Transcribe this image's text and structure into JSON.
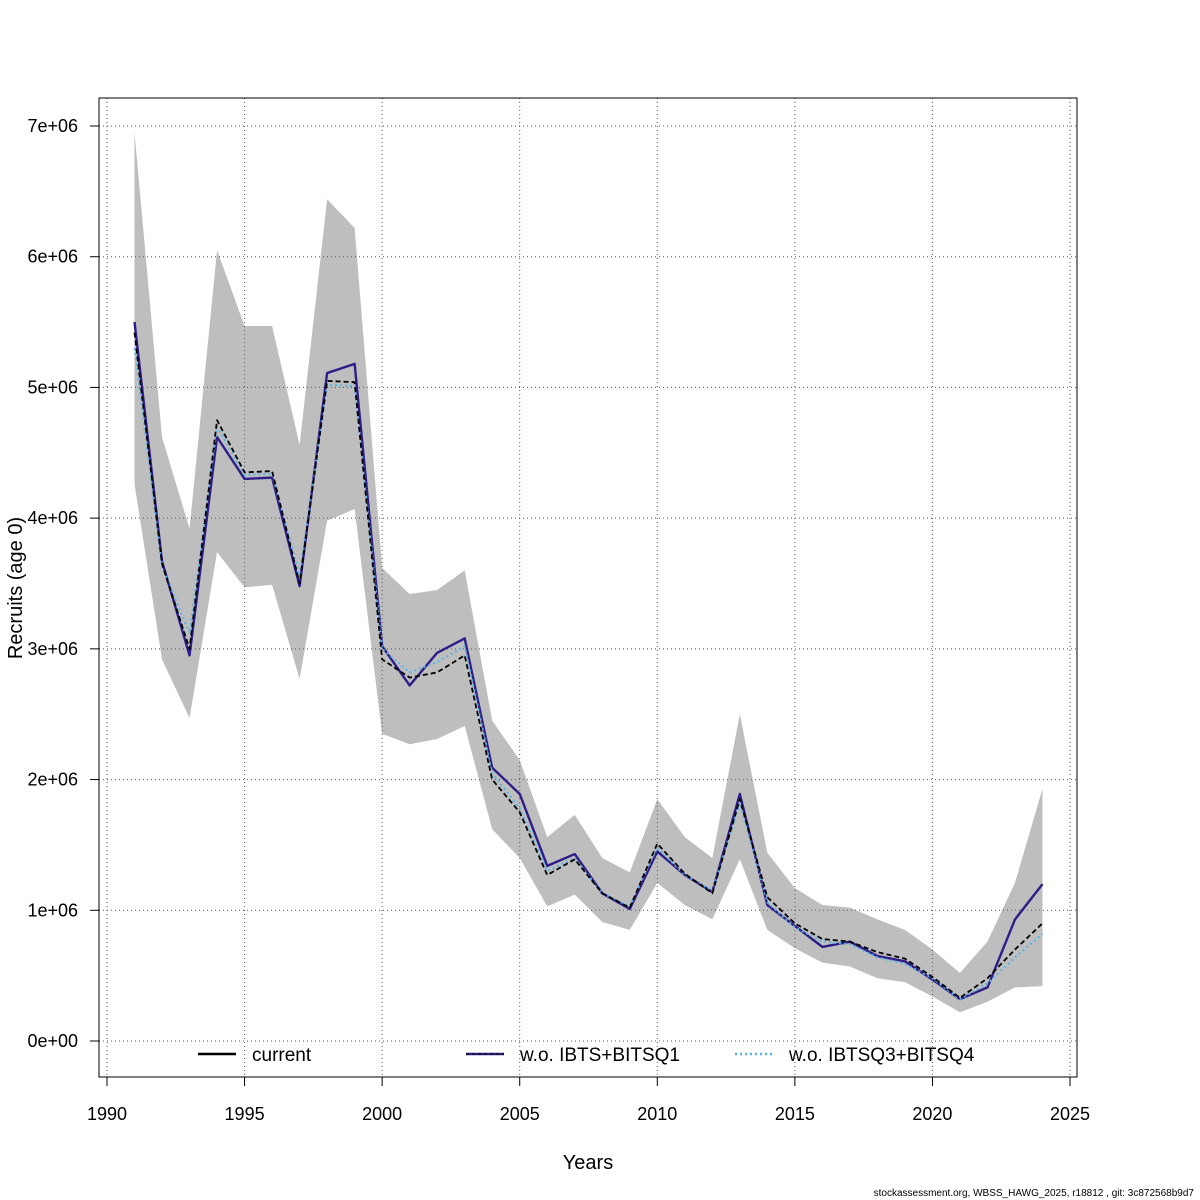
{
  "chart_data": {
    "type": "line",
    "xlabel": "Years",
    "ylabel": "Recruits (age 0)",
    "xlim": [
      1990,
      2025
    ],
    "ylim": [
      0,
      7000000
    ],
    "x_ticks": [
      1990,
      1995,
      2000,
      2005,
      2010,
      2015,
      2020,
      2025
    ],
    "y_ticks": [
      0,
      1000000,
      2000000,
      3000000,
      4000000,
      5000000,
      6000000,
      7000000
    ],
    "x_tick_labels": [
      "1990",
      "1995",
      "2000",
      "2005",
      "2010",
      "2015",
      "2020",
      "2025"
    ],
    "y_tick_labels": [
      "0e+00",
      "1e+06",
      "2e+06",
      "3e+06",
      "4e+06",
      "5e+06",
      "6e+06",
      "7e+06"
    ],
    "grid": true,
    "legend_position": "bottom",
    "x": [
      1991,
      1992,
      1993,
      1994,
      1995,
      1996,
      1997,
      1998,
      1999,
      2000,
      2001,
      2002,
      2003,
      2004,
      2005,
      2006,
      2007,
      2008,
      2009,
      2010,
      2011,
      2012,
      2013,
      2014,
      2015,
      2016,
      2017,
      2018,
      2019,
      2020,
      2021,
      2022,
      2023,
      2024
    ],
    "band": {
      "name": "confidence interval",
      "color": "#bebebe",
      "upper": [
        6950000,
        4620000,
        3920000,
        6050000,
        5470000,
        5470000,
        4560000,
        6440000,
        6220000,
        3620000,
        3420000,
        3450000,
        3600000,
        2450000,
        2150000,
        1560000,
        1730000,
        1400000,
        1290000,
        1850000,
        1560000,
        1400000,
        2500000,
        1440000,
        1170000,
        1040000,
        1020000,
        930000,
        850000,
        700000,
        520000,
        760000,
        1210000,
        1930000
      ],
      "lower": [
        4260000,
        2920000,
        2470000,
        3740000,
        3470000,
        3490000,
        2770000,
        3980000,
        4070000,
        2350000,
        2270000,
        2310000,
        2410000,
        1620000,
        1400000,
        1030000,
        1120000,
        910000,
        850000,
        1210000,
        1040000,
        930000,
        1390000,
        850000,
        710000,
        600000,
        570000,
        480000,
        450000,
        340000,
        220000,
        300000,
        410000,
        420000
      ]
    },
    "series": [
      {
        "name": "current",
        "color": "#000000",
        "style": "solid",
        "values": [
          5420000,
          3650000,
          3000000,
          4750000,
          4350000,
          4360000,
          3500000,
          5050000,
          5040000,
          2920000,
          2780000,
          2820000,
          2950000,
          2000000,
          1750000,
          1270000,
          1390000,
          1130000,
          1020000,
          1510000,
          1280000,
          1130000,
          1850000,
          1100000,
          900000,
          780000,
          760000,
          680000,
          630000,
          490000,
          330000,
          480000,
          700000,
          900000
        ]
      },
      {
        "name": "w.o. IBTS+BITSQ1",
        "color": "#2e1d87",
        "style": "solid",
        "values": [
          5500000,
          3670000,
          2950000,
          4620000,
          4300000,
          4310000,
          3480000,
          5110000,
          5180000,
          3020000,
          2720000,
          2970000,
          3080000,
          2090000,
          1890000,
          1340000,
          1430000,
          1130000,
          1010000,
          1450000,
          1270000,
          1140000,
          1890000,
          1040000,
          880000,
          720000,
          760000,
          650000,
          610000,
          470000,
          320000,
          410000,
          930000,
          1200000
        ]
      },
      {
        "name": "w.o. IBTSQ3+BITSQ4",
        "color": "#56b4e9",
        "style": "dotted",
        "values": [
          5300000,
          3630000,
          3120000,
          4700000,
          4330000,
          4340000,
          3560000,
          5020000,
          5010000,
          3000000,
          2820000,
          2900000,
          3020000,
          2050000,
          1780000,
          1300000,
          1400000,
          1130000,
          1030000,
          1480000,
          1270000,
          1150000,
          1820000,
          1060000,
          870000,
          760000,
          740000,
          640000,
          590000,
          480000,
          320000,
          440000,
          640000,
          820000
        ]
      }
    ]
  },
  "footer": "stockassessment.org, WBSS_HAWG_2025, r18812 , git: 3c872568b9d7"
}
